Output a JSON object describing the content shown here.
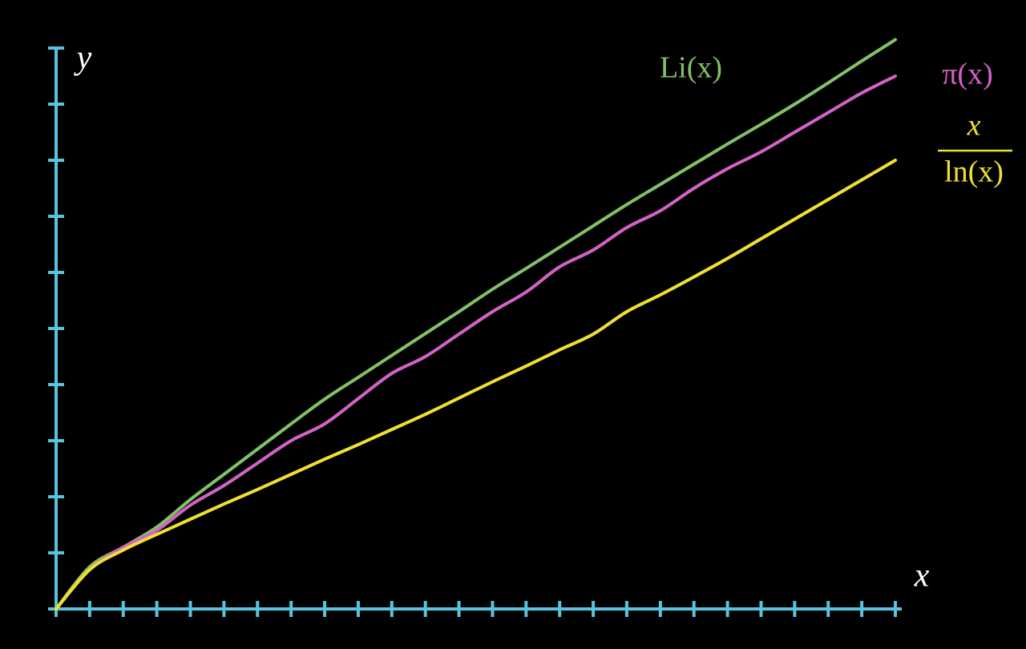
{
  "chart_data": {
    "type": "line",
    "xlabel": "x",
    "ylabel": "y",
    "x": [
      0,
      1,
      2,
      3,
      4,
      5,
      6,
      7,
      8,
      9,
      10,
      11,
      12,
      13,
      14,
      15,
      16,
      17,
      18,
      19,
      20,
      21,
      22,
      23,
      24,
      25
    ],
    "series": [
      {
        "name": "Li(x)",
        "color": "#83c167",
        "values": [
          0,
          0.75,
          1.1,
          1.46,
          1.95,
          2.4,
          2.85,
          3.3,
          3.74,
          4.13,
          4.52,
          4.91,
          5.3,
          5.7,
          6.07,
          6.45,
          6.83,
          7.21,
          7.57,
          7.93,
          8.29,
          8.64,
          9.0,
          9.38,
          9.77,
          10.15
        ]
      },
      {
        "name": "π(x)",
        "color": "#d462c8",
        "values": [
          0,
          0.7,
          1.1,
          1.4,
          1.85,
          2.2,
          2.6,
          3.0,
          3.3,
          3.75,
          4.2,
          4.5,
          4.9,
          5.3,
          5.65,
          6.1,
          6.4,
          6.8,
          7.1,
          7.5,
          7.85,
          8.15,
          8.5,
          8.85,
          9.2,
          9.5
        ]
      },
      {
        "name": {
          "numerator": "x",
          "denominator": "ln(x)"
        },
        "color": "#f0e030",
        "values": [
          0,
          0.7,
          1.05,
          1.33,
          1.6,
          1.87,
          2.13,
          2.4,
          2.67,
          2.93,
          3.2,
          3.47,
          3.76,
          4.05,
          4.33,
          4.62,
          4.9,
          5.3,
          5.6,
          5.92,
          6.25,
          6.6,
          6.95,
          7.3,
          7.65,
          8.0
        ]
      }
    ],
    "xlim": [
      0,
      25
    ],
    "ylim": [
      0,
      10
    ],
    "xticks": [
      0,
      1,
      2,
      3,
      4,
      5,
      6,
      7,
      8,
      9,
      10,
      11,
      12,
      13,
      14,
      15,
      16,
      17,
      18,
      19,
      20,
      21,
      22,
      23,
      24,
      25
    ],
    "yticks": [
      0,
      1,
      2,
      3,
      4,
      5,
      6,
      7,
      8,
      9,
      10
    ],
    "axis_color": "#58c4dd"
  }
}
